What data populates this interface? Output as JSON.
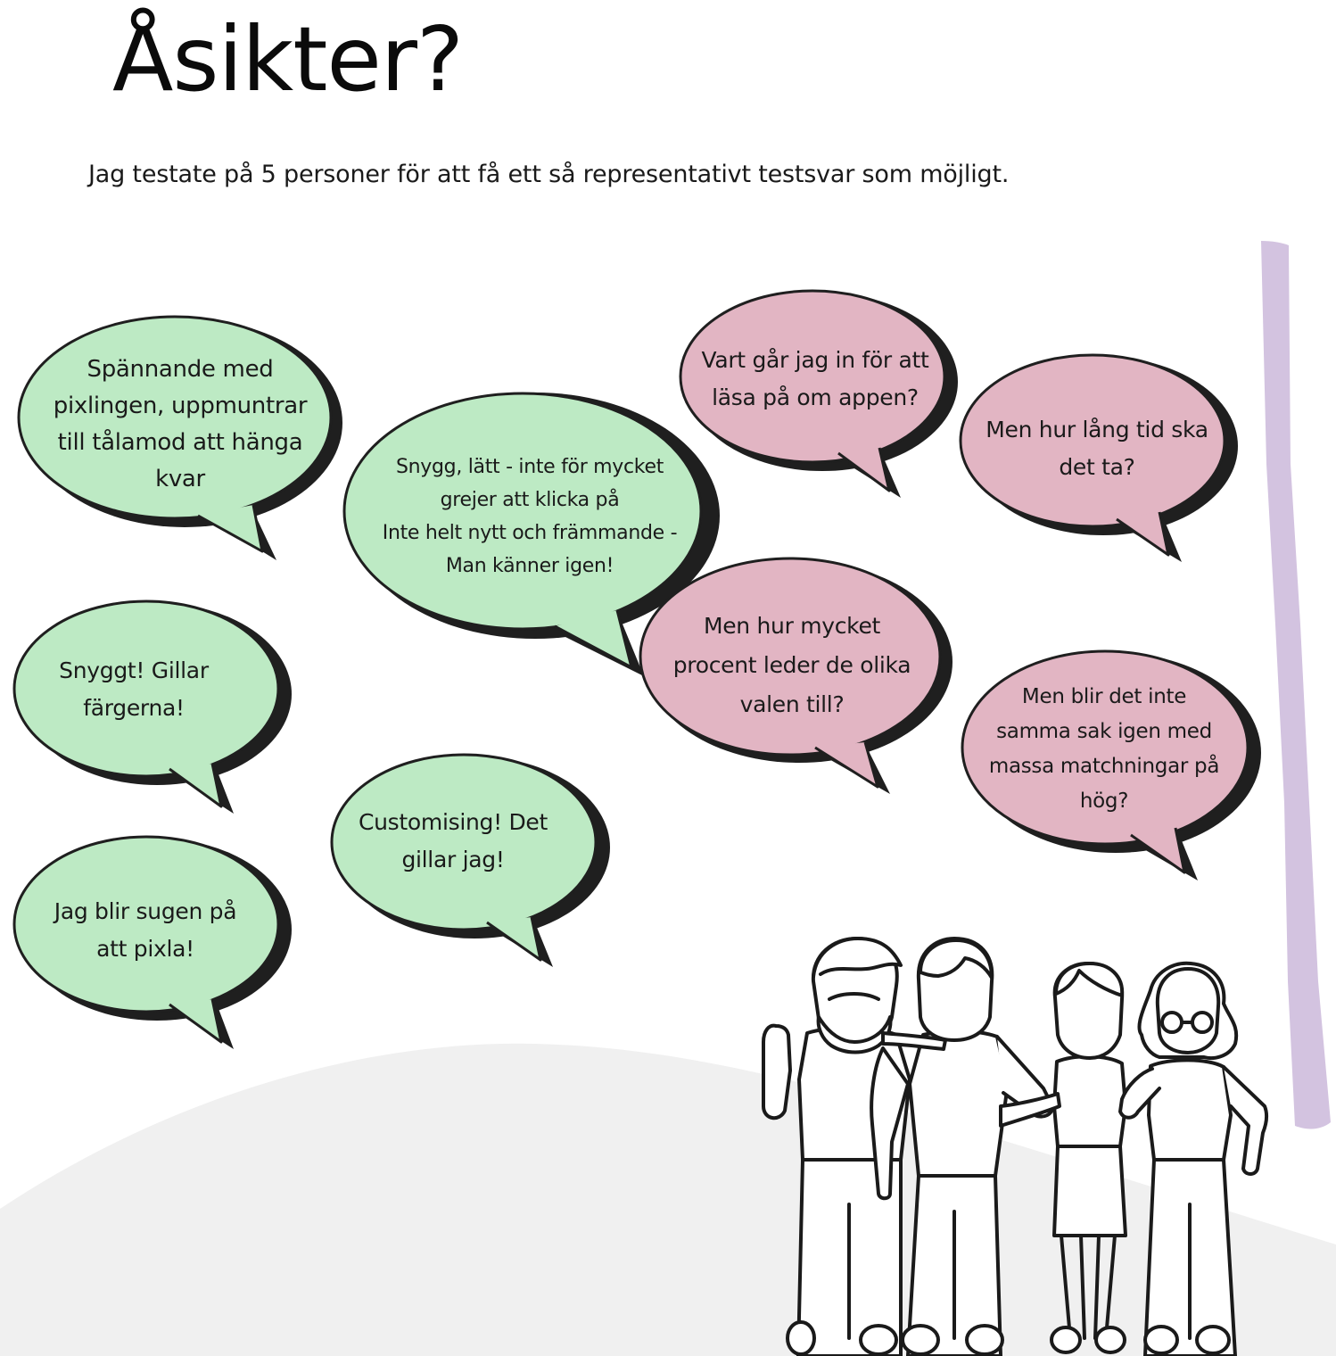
{
  "page": {
    "title": "Åsikter?",
    "intro": "Jag testate på 5 personer för att få ett så representativt testsvar som möjligt."
  },
  "colors": {
    "positive_bubble": "#bdeac4",
    "question_bubble": "#e2b5c3",
    "bubble_shadow": "#1f1f1f",
    "accent_stripe": "#d3c3e0",
    "ground": "#f0f0f0"
  },
  "bubbles": {
    "b1": "Spännande med\npixlingen, uppmuntrar\ntill tålamod att hänga\nkvar",
    "b2": "Snygg, lätt - inte för mycket\ngrejer att klicka på\nInte helt nytt och främmande -\nMan känner igen!",
    "b3": "Vart går jag in för att\nläsa på om appen?",
    "b4": "Men hur lång tid ska\ndet ta?",
    "b5": "Snyggt! Gillar\nfärgerna!",
    "b6": "Men hur mycket\nprocent leder de olika\nvalen till?",
    "b7": "Men blir det inte\nsamma sak igen med\nmassa matchningar på\nhög?",
    "b8": "Customising! Det\ngillar jag!",
    "b9": "Jag blir sugen på\natt pixla!"
  },
  "illustration": {
    "icon": "group-of-people-illustration"
  }
}
